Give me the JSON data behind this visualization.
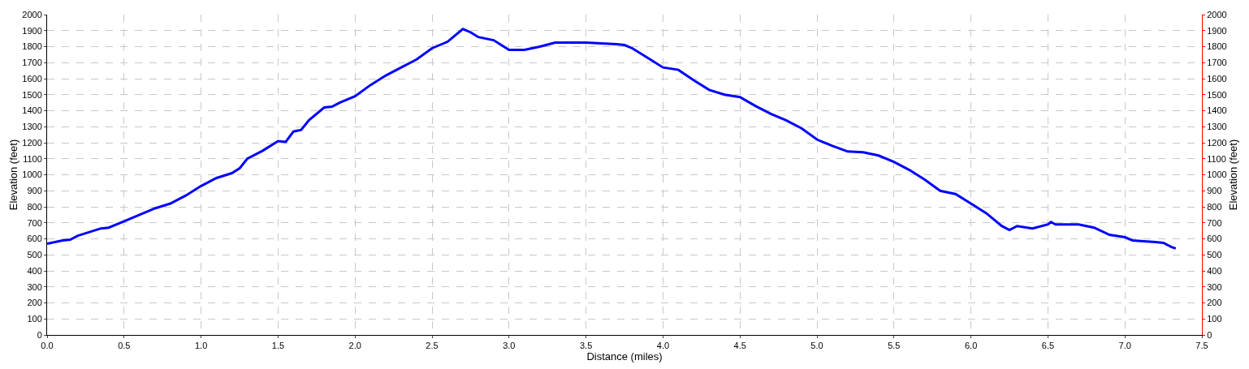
{
  "chart_data": {
    "type": "line",
    "xlabel": "Distance (miles)",
    "ylabel": "Elevation (feet)",
    "y2label": "Elevation (feet)",
    "series": [
      {
        "color": "#0000ff",
        "x": [
          0,
          0.1,
          0.15,
          0.2,
          0.25,
          0.3,
          0.35,
          0.4,
          0.5,
          0.6,
          0.7,
          0.8,
          0.9,
          1.0,
          1.1,
          1.2,
          1.25,
          1.3,
          1.4,
          1.5,
          1.55,
          1.6,
          1.65,
          1.7,
          1.8,
          1.85,
          1.9,
          2.0,
          2.1,
          2.2,
          2.3,
          2.4,
          2.5,
          2.6,
          2.7,
          2.75,
          2.8,
          2.9,
          3.0,
          3.1,
          3.2,
          3.3,
          3.5,
          3.7,
          3.75,
          3.8,
          3.9,
          4.0,
          4.1,
          4.2,
          4.3,
          4.4,
          4.5,
          4.6,
          4.7,
          4.8,
          4.9,
          5.0,
          5.1,
          5.2,
          5.3,
          5.4,
          5.5,
          5.6,
          5.7,
          5.8,
          5.9,
          6.0,
          6.1,
          6.2,
          6.25,
          6.3,
          6.4,
          6.5,
          6.52,
          6.55,
          6.7,
          6.8,
          6.9,
          7.0,
          7.05,
          7.2,
          7.25,
          7.3,
          7.33
        ],
        "values": [
          570,
          590,
          595,
          620,
          635,
          650,
          665,
          670,
          710,
          750,
          790,
          820,
          870,
          930,
          980,
          1010,
          1040,
          1100,
          1150,
          1210,
          1205,
          1270,
          1280,
          1340,
          1420,
          1425,
          1450,
          1490,
          1560,
          1620,
          1670,
          1720,
          1790,
          1830,
          1910,
          1890,
          1860,
          1840,
          1780,
          1780,
          1800,
          1825,
          1825,
          1815,
          1810,
          1790,
          1730,
          1670,
          1655,
          1590,
          1530,
          1500,
          1485,
          1430,
          1380,
          1340,
          1290,
          1220,
          1180,
          1145,
          1140,
          1120,
          1080,
          1030,
          970,
          900,
          880,
          820,
          760,
          680,
          655,
          680,
          665,
          690,
          705,
          690,
          690,
          670,
          625,
          610,
          590,
          580,
          575,
          550,
          540
        ]
      }
    ],
    "xlim": [
      0,
      7.5
    ],
    "xticks": [
      {
        "value": 0,
        "label": "0.0"
      },
      0.5,
      {
        "value": 1,
        "label": "1.0"
      },
      1.5,
      {
        "value": 2,
        "label": "2.0"
      },
      2.5,
      {
        "value": 3,
        "label": "3.0"
      },
      3.5,
      {
        "value": 4,
        "label": "4.0"
      },
      4.5,
      {
        "value": 5,
        "label": "5.0"
      },
      5.5,
      {
        "value": 6,
        "label": "6.0"
      },
      6.5,
      {
        "value": 7,
        "label": "7.0"
      },
      7.5
    ],
    "ylim": [
      0,
      2000
    ],
    "yticks": [
      0,
      100,
      200,
      300,
      400,
      500,
      600,
      700,
      800,
      900,
      1000,
      1100,
      1200,
      1300,
      1400,
      1500,
      1600,
      1700,
      1800,
      1900,
      2000
    ],
    "y2lim": [
      0,
      2000
    ],
    "y2ticks": [
      0,
      100,
      200,
      300,
      400,
      500,
      600,
      700,
      800,
      900,
      1000,
      1100,
      1200,
      1300,
      1400,
      1500,
      1600,
      1700,
      1800,
      1900,
      2000
    ],
    "grid": true,
    "legend": false,
    "marker": "none",
    "line_style": "solid"
  }
}
